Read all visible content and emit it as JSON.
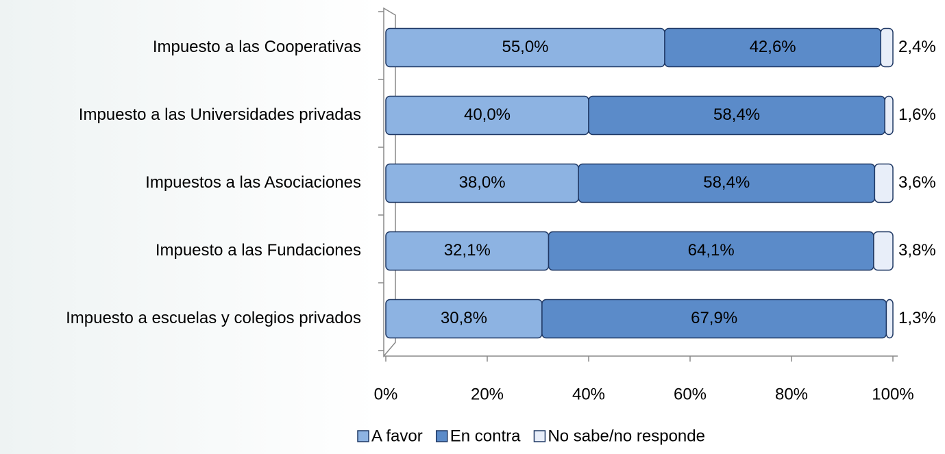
{
  "chart_data": {
    "type": "stacked_barh",
    "categories": [
      "Impuesto a las Cooperativas",
      "Impuesto a las Universidades privadas",
      "Impuestos a las Asociaciones",
      "Impuesto a las Fundaciones",
      "Impuesto a escuelas y colegios privados"
    ],
    "series": [
      {
        "name": "A favor",
        "color": "#8db3e2",
        "values": [
          55.0,
          40.0,
          38.0,
          32.1,
          30.8
        ],
        "value_labels": [
          "55,0%",
          "40,0%",
          "38,0%",
          "32,1%",
          "30,8%"
        ]
      },
      {
        "name": "En contra",
        "color": "#5b8bc9",
        "values": [
          42.6,
          58.4,
          58.4,
          64.1,
          67.9
        ],
        "value_labels": [
          "42,6%",
          "58,4%",
          "58,4%",
          "64,1%",
          "67,9%"
        ]
      },
      {
        "name": "No sabe/no responde",
        "color": "#e8eef9",
        "values": [
          2.4,
          1.6,
          3.6,
          3.8,
          1.3
        ],
        "value_labels": [
          "2,4%",
          "1,6%",
          "3,6%",
          "3,8%",
          "1,3%"
        ]
      }
    ],
    "xlim": [
      0,
      100
    ],
    "xticks": [
      {
        "value": 0,
        "label": "0%"
      },
      {
        "value": 20,
        "label": "20%"
      },
      {
        "value": 40,
        "label": "40%"
      },
      {
        "value": 60,
        "label": "60%"
      },
      {
        "value": 80,
        "label": "80%"
      },
      {
        "value": 100,
        "label": "100%"
      }
    ],
    "legend": "bottom"
  }
}
